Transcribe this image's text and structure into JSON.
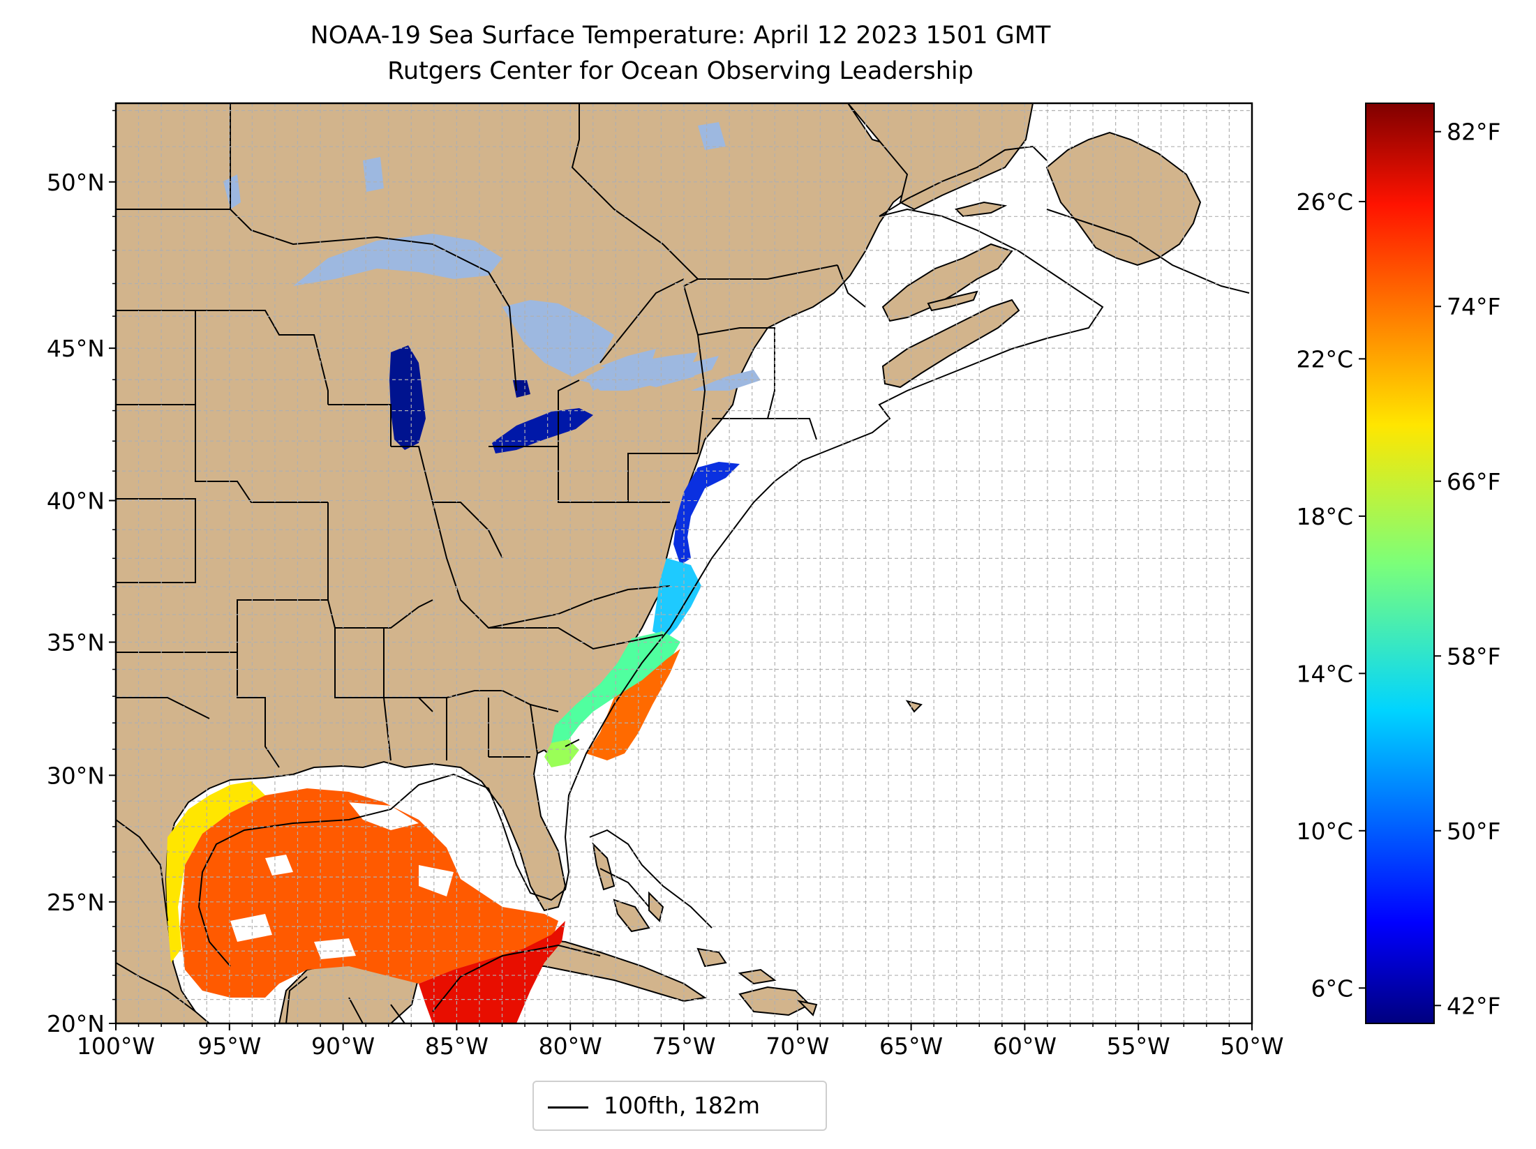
{
  "title": "NOAA-19 Sea Surface Temperature: April 12 2023 1501 GMT",
  "subtitle": "Rutgers Center for Ocean Observing Leadership",
  "map": {
    "lon_range": [
      -100,
      -50
    ],
    "lat_range": [
      20,
      52.2
    ],
    "x_ticks": [
      "100°W",
      "95°W",
      "90°W",
      "85°W",
      "80°W",
      "75°W",
      "70°W",
      "65°W",
      "60°W",
      "55°W",
      "50°W"
    ],
    "y_ticks": [
      "20°N",
      "25°N",
      "30°N",
      "35°N",
      "40°N",
      "45°N",
      "50°N"
    ],
    "grid": "dashed gray, 1° spacing",
    "land_color": "#d2b48c",
    "lake_color": "#9db8e0",
    "ocean_color": "#ffffff"
  },
  "colorbar": {
    "colormap": "jet",
    "celsius_ticks": [
      "26°C",
      "22°C",
      "18°C",
      "14°C",
      "10°C",
      "6°C"
    ],
    "fahrenheit_ticks": [
      "82°F",
      "74°F",
      "66°F",
      "58°F",
      "50°F",
      "42°F"
    ]
  },
  "legend": {
    "label": "100fth, 182m",
    "line_color": "#000000"
  }
}
